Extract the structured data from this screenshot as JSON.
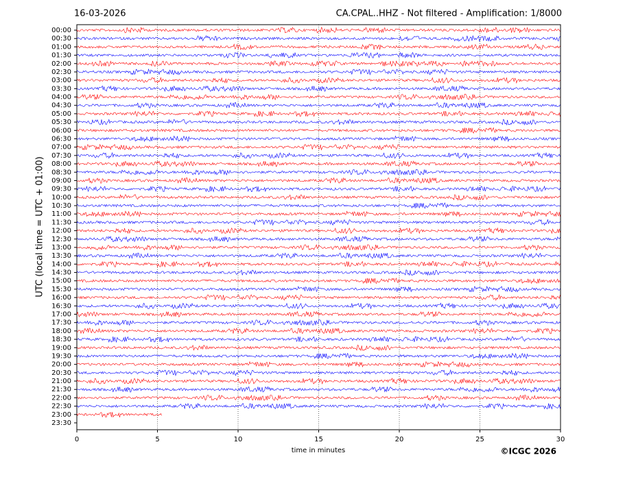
{
  "chart_data": {
    "type": "helicorder",
    "title_left": "16-03-2026",
    "title_right": "CA.CPAL..HHZ - Not filtered - Amplification: 1/8000",
    "y_label": "UTC (local time = UTC + 01:00)",
    "x_label": "time in minutes",
    "credit": "©ICGC 2026",
    "categories": [
      "00:00",
      "00:30",
      "01:00",
      "01:30",
      "02:00",
      "02:30",
      "03:00",
      "03:30",
      "04:00",
      "04:30",
      "05:00",
      "05:30",
      "06:00",
      "06:30",
      "07:00",
      "07:30",
      "08:00",
      "08:30",
      "09:00",
      "09:30",
      "10:00",
      "10:30",
      "11:00",
      "11:30",
      "12:00",
      "12:30",
      "13:00",
      "13:30",
      "14:00",
      "14:30",
      "15:00",
      "15:30",
      "16:00",
      "16:30",
      "17:00",
      "17:30",
      "18:00",
      "18:30",
      "19:00",
      "19:30",
      "20:00",
      "20:30",
      "21:00",
      "21:30",
      "22:00",
      "22:30",
      "23:00",
      "23:30"
    ],
    "values": [
      30,
      30,
      30,
      30,
      30,
      30,
      30,
      30,
      30,
      30,
      30,
      30,
      30,
      30,
      30,
      30,
      30,
      30,
      30,
      30,
      30,
      30,
      30,
      30,
      30,
      30,
      30,
      30,
      30,
      30,
      30,
      30,
      30,
      30,
      30,
      30,
      30,
      30,
      30,
      30,
      30,
      30,
      30,
      30,
      30,
      30,
      5.3,
      null
    ],
    "colors": [
      "#ff0000",
      "#0000ff"
    ],
    "xlim": [
      0,
      30
    ],
    "xticks": [
      0,
      5,
      10,
      15,
      20,
      25,
      30
    ],
    "grid": true
  }
}
